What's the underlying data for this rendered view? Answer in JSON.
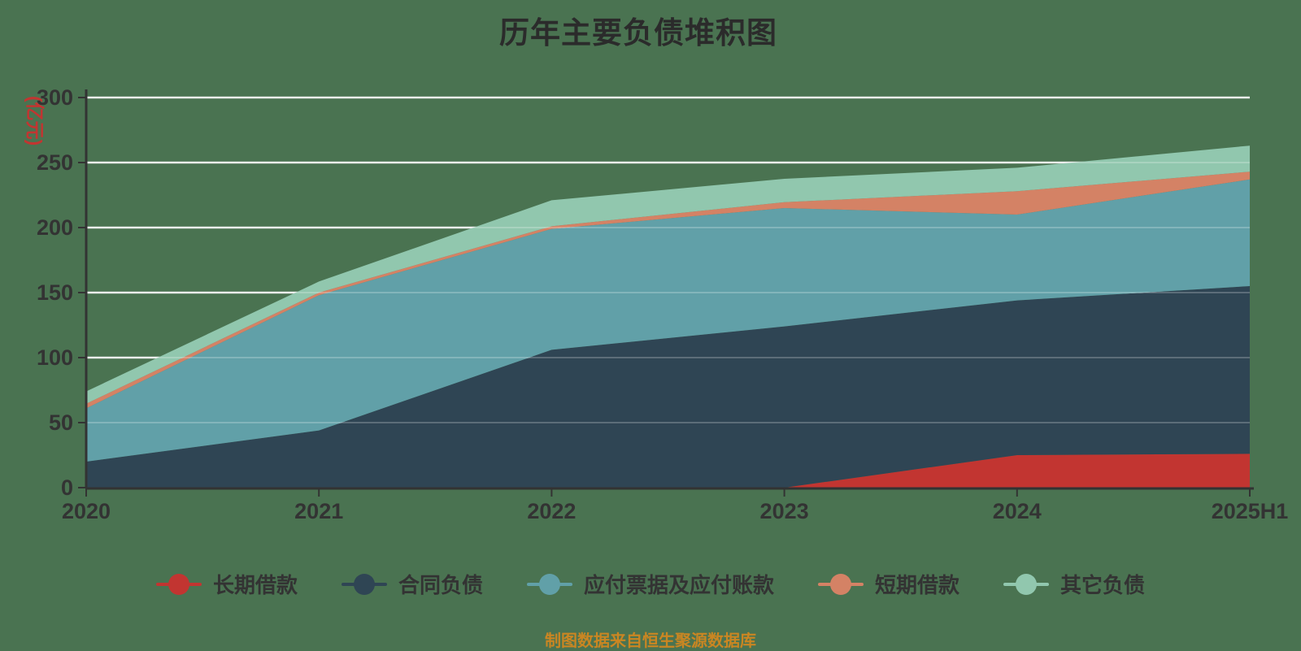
{
  "title": "历年主要负债堆积图",
  "y_axis_name": "(亿元)",
  "footer_note": "制图数据来自恒生聚源数据库",
  "colors": {
    "background": "#4a7351",
    "title_text": "#2b2b2b",
    "axis_text": "#333333",
    "axis_line": "#333333",
    "gridline": "#eaeaea",
    "y_axis_name_text": "#c23531",
    "footer_text": "#ca8622"
  },
  "legend": {
    "items": [
      {
        "label": "长期借款",
        "color": "#c23531"
      },
      {
        "label": "合同负债",
        "color": "#2f4554"
      },
      {
        "label": "应付票据及应付账款",
        "color": "#61a0a8"
      },
      {
        "label": "短期借款",
        "color": "#d48265"
      },
      {
        "label": "其它负债",
        "color": "#91c7ae"
      }
    ]
  },
  "chart_data": {
    "type": "area",
    "stacked": true,
    "title": "历年主要负债堆积图",
    "ylabel": "(亿元)",
    "xlabel": "",
    "categories": [
      "2020",
      "2021",
      "2022",
      "2023",
      "2024",
      "2025H1"
    ],
    "series": [
      {
        "name": "长期借款",
        "color": "#c23531",
        "values": [
          0,
          0,
          0,
          0,
          25,
          26
        ]
      },
      {
        "name": "合同负债",
        "color": "#2f4554",
        "values": [
          20,
          44,
          106,
          124,
          119,
          129
        ]
      },
      {
        "name": "应付票据及应付账款",
        "color": "#61a0a8",
        "values": [
          41,
          104,
          93,
          91,
          66,
          82
        ]
      },
      {
        "name": "短期借款",
        "color": "#d48265",
        "values": [
          3.5,
          2,
          2,
          4.5,
          18,
          6
        ]
      },
      {
        "name": "其它负债",
        "color": "#91c7ae",
        "values": [
          9.5,
          8.5,
          20,
          18,
          18,
          20
        ]
      }
    ],
    "stacked_totals": [
      74,
      158.5,
      221,
      237.5,
      246,
      263
    ],
    "ylim": [
      0,
      300
    ],
    "y_tick_step": 50,
    "grid": true,
    "legend_position": "bottom"
  }
}
